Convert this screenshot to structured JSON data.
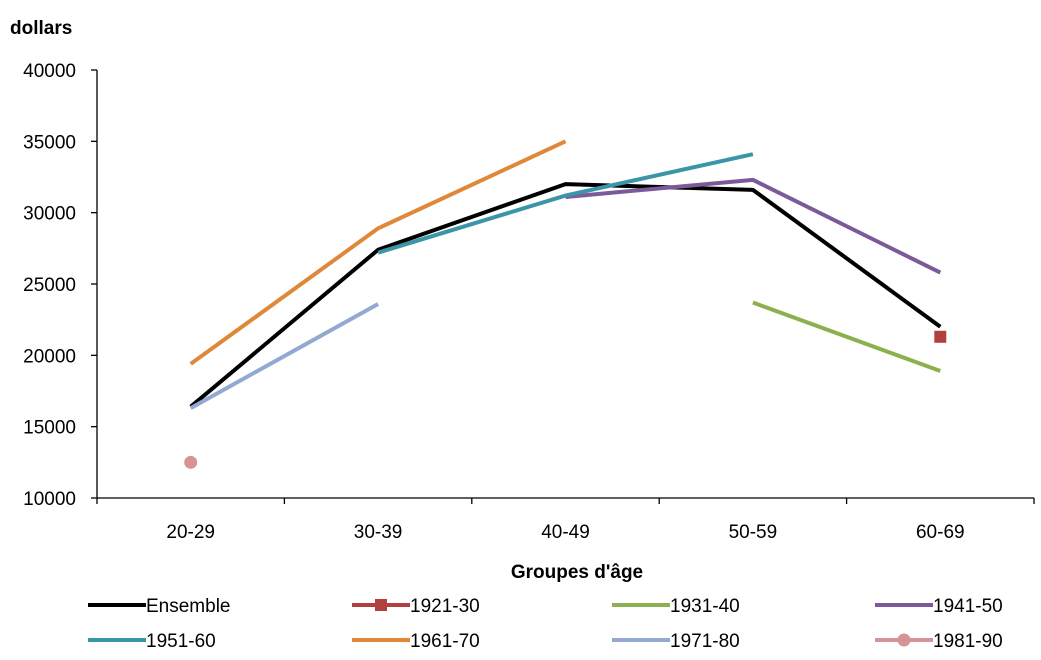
{
  "chart_data": {
    "type": "line",
    "ylabel": "dollars",
    "xlabel": "Groupes d'âge",
    "categories": [
      "20-29",
      "30-39",
      "40-49",
      "50-59",
      "60-69"
    ],
    "ylim": [
      10000,
      40000
    ],
    "yticks": [
      10000,
      15000,
      20000,
      25000,
      30000,
      35000,
      40000
    ],
    "grid": false,
    "legend_position": "bottom",
    "series": [
      {
        "name": "Ensemble",
        "color": "#000000",
        "marker": "none",
        "values": [
          16400,
          27400,
          32000,
          31600,
          22000
        ]
      },
      {
        "name": "1921-30",
        "color": "#b0413e",
        "marker": "square",
        "values": [
          null,
          null,
          null,
          null,
          21300
        ]
      },
      {
        "name": "1931-40",
        "color": "#8db04f",
        "marker": "none",
        "values": [
          null,
          null,
          null,
          23700,
          18900
        ]
      },
      {
        "name": "1941-50",
        "color": "#7b5a99",
        "marker": "none",
        "values": [
          null,
          null,
          31100,
          32300,
          25800
        ]
      },
      {
        "name": "1951-60",
        "color": "#3a95a9",
        "marker": "none",
        "values": [
          null,
          27200,
          31200,
          34100,
          null
        ]
      },
      {
        "name": "1961-70",
        "color": "#e0883a",
        "marker": "none",
        "values": [
          19400,
          28900,
          35000,
          null,
          null
        ]
      },
      {
        "name": "1971-80",
        "color": "#92a9d2",
        "marker": "none",
        "values": [
          16300,
          23600,
          null,
          null,
          null
        ]
      },
      {
        "name": "1981-90",
        "color": "#d69594",
        "marker": "circle",
        "values": [
          12500,
          null,
          null,
          null,
          null
        ]
      }
    ]
  }
}
